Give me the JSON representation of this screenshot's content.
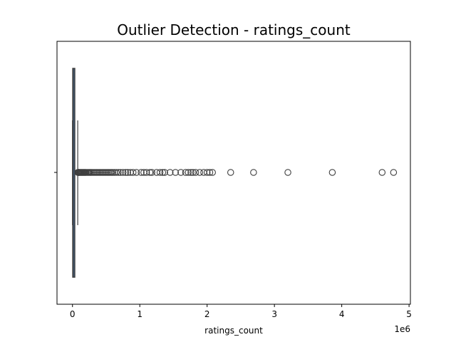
{
  "chart_data": {
    "type": "box",
    "title": "Outlier Detection - ratings_count",
    "xlabel": "ratings_count",
    "ylabel": "",
    "orientation": "horizontal",
    "offset_text": "1e6",
    "xlim": [
      -230000,
      5020000
    ],
    "xticks": [
      0,
      1,
      2,
      3,
      4,
      5
    ],
    "tick_scale": 1000000,
    "grid": false,
    "box": {
      "q1": 4000,
      "median": 11000,
      "q3": 34000,
      "whisker_low": 0,
      "whisker_high": 78000
    },
    "outliers": [
      80000,
      85000,
      90000,
      95000,
      100000,
      110000,
      120000,
      130000,
      140000,
      150000,
      160000,
      170000,
      180000,
      190000,
      200000,
      215000,
      230000,
      245000,
      260000,
      280000,
      300000,
      320000,
      340000,
      360000,
      380000,
      400000,
      420000,
      440000,
      460000,
      480000,
      500000,
      520000,
      540000,
      560000,
      580000,
      600000,
      625000,
      650000,
      680000,
      710000,
      750000,
      790000,
      820000,
      860000,
      900000,
      950000,
      1020000,
      1060000,
      1100000,
      1150000,
      1180000,
      1250000,
      1300000,
      1340000,
      1370000,
      1450000,
      1530000,
      1610000,
      1680000,
      1720000,
      1760000,
      1790000,
      1830000,
      1890000,
      1950000,
      2000000,
      2040000,
      2080000,
      2350000,
      2690000,
      3200000,
      3860000,
      4600000,
      4770000
    ],
    "box_color": "#3d6fa8",
    "line_color": "#3f3f3f"
  }
}
